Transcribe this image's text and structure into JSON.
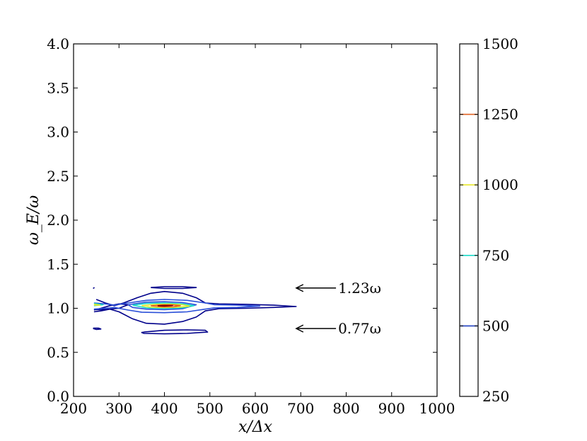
{
  "chart_data": {
    "type": "contour",
    "xlabel": "x/Δx",
    "ylabel": "ω_E/ω",
    "xlim": [
      200,
      1000
    ],
    "ylim": [
      0.0,
      4.0
    ],
    "xticks": [
      "200",
      "300",
      "400",
      "500",
      "600",
      "700",
      "800",
      "900",
      "1000"
    ],
    "yticks": [
      "0.0",
      "0.5",
      "1.0",
      "1.5",
      "2.0",
      "2.5",
      "3.0",
      "3.5",
      "4.0"
    ],
    "grid": false,
    "colorbar": {
      "range": [
        250,
        1500
      ],
      "ticks": [
        "250",
        "500",
        "750",
        "1000",
        "1250",
        "1500"
      ],
      "levels": [
        {
          "value": 500,
          "color": "#1f3fbf"
        },
        {
          "value": 750,
          "color": "#19d9c8"
        },
        {
          "value": 1000,
          "color": "#e8e82a"
        },
        {
          "value": 1250,
          "color": "#e06020"
        }
      ]
    },
    "contour_levels": [
      {
        "level": 250,
        "color": "#00008b",
        "paths": [
          [
            [
              250,
              1.1
            ],
            [
              270,
              1.06
            ],
            [
              290,
              1.03
            ],
            [
              310,
              1.06
            ],
            [
              340,
              1.12
            ],
            [
              370,
              1.17
            ],
            [
              400,
              1.19
            ],
            [
              440,
              1.17
            ],
            [
              470,
              1.12
            ],
            [
              490,
              1.06
            ],
            [
              520,
              1.05
            ],
            [
              580,
              1.045
            ],
            [
              640,
              1.035
            ],
            [
              690,
              1.02
            ],
            [
              640,
              1.01
            ],
            [
              580,
              1.0
            ],
            [
              520,
              0.995
            ],
            [
              490,
              0.97
            ],
            [
              470,
              0.9
            ],
            [
              440,
              0.85
            ],
            [
              400,
              0.82
            ],
            [
              360,
              0.83
            ],
            [
              330,
              0.88
            ],
            [
              300,
              0.96
            ],
            [
              280,
              0.99
            ],
            [
              260,
              0.97
            ],
            [
              245,
              0.96
            ]
          ],
          [
            [
              245,
              0.98
            ],
            [
              260,
              1.0
            ],
            [
              280,
              1.03
            ],
            [
              300,
              1.05
            ],
            [
              320,
              1.04
            ],
            [
              300,
              1.0
            ],
            [
              280,
              0.99
            ],
            [
              260,
              0.985
            ],
            [
              245,
              0.985
            ]
          ],
          [
            [
              355,
              0.73
            ],
            [
              400,
              0.75
            ],
            [
              450,
              0.755
            ],
            [
              490,
              0.75
            ],
            [
              495,
              0.73
            ],
            [
              450,
              0.715
            ],
            [
              400,
              0.71
            ],
            [
              355,
              0.715
            ],
            [
              350,
              0.725
            ],
            [
              355,
              0.73
            ]
          ],
          [
            [
              370,
              1.235
            ],
            [
              400,
              1.245
            ],
            [
              440,
              1.245
            ],
            [
              470,
              1.235
            ],
            [
              440,
              1.225
            ],
            [
              400,
              1.225
            ],
            [
              370,
              1.235
            ]
          ],
          [
            [
              243,
              0.775
            ],
            [
              255,
              0.775
            ],
            [
              260,
              0.765
            ],
            [
              250,
              0.76
            ],
            [
              243,
              0.77
            ]
          ],
          [
            [
              243,
              1.225
            ],
            [
              246,
              1.235
            ]
          ]
        ]
      },
      {
        "level": 500,
        "color": "#2a4fd8",
        "paths": [
          [
            [
              245,
              1.06
            ],
            [
              270,
              1.05
            ],
            [
              290,
              1.035
            ],
            [
              320,
              1.06
            ],
            [
              360,
              1.09
            ],
            [
              400,
              1.1
            ],
            [
              450,
              1.09
            ],
            [
              490,
              1.06
            ],
            [
              510,
              1.04
            ],
            [
              560,
              1.035
            ],
            [
              610,
              1.025
            ],
            [
              560,
              1.01
            ],
            [
              510,
              1.005
            ],
            [
              490,
              0.99
            ],
            [
              450,
              0.96
            ],
            [
              400,
              0.95
            ],
            [
              350,
              0.955
            ],
            [
              320,
              0.98
            ],
            [
              290,
              1.01
            ],
            [
              270,
              1.0
            ],
            [
              245,
              0.99
            ]
          ],
          [
            [
              320,
              1.04
            ],
            [
              360,
              1.07
            ],
            [
              400,
              1.075
            ],
            [
              440,
              1.065
            ],
            [
              470,
              1.04
            ],
            [
              440,
              0.995
            ],
            [
              400,
              0.985
            ],
            [
              360,
              0.99
            ],
            [
              330,
              1.01
            ],
            [
              320,
              1.04
            ]
          ]
        ]
      },
      {
        "level": 750,
        "color": "#19d9c8",
        "paths": [
          [
            [
              245,
              1.055
            ],
            [
              265,
              1.04
            ],
            [
              245,
              1.03
            ]
          ],
          [
            [
              330,
              1.035
            ],
            [
              360,
              1.055
            ],
            [
              400,
              1.06
            ],
            [
              440,
              1.05
            ],
            [
              465,
              1.03
            ],
            [
              440,
              1.005
            ],
            [
              400,
              0.998
            ],
            [
              360,
              1.005
            ],
            [
              330,
              1.035
            ]
          ]
        ]
      },
      {
        "level": 1000,
        "color": "#e8e82a",
        "paths": [
          [
            [
              245,
              1.045
            ],
            [
              258,
              1.037
            ],
            [
              245,
              1.035
            ]
          ],
          [
            [
              350,
              1.03
            ],
            [
              380,
              1.045
            ],
            [
              410,
              1.048
            ],
            [
              440,
              1.04
            ],
            [
              455,
              1.025
            ],
            [
              430,
              1.012
            ],
            [
              400,
              1.008
            ],
            [
              370,
              1.012
            ],
            [
              350,
              1.03
            ]
          ]
        ]
      },
      {
        "level": 1250,
        "color": "#e06020",
        "paths": [
          [
            [
              370,
              1.028
            ],
            [
              395,
              1.038
            ],
            [
              420,
              1.038
            ],
            [
              435,
              1.03
            ],
            [
              420,
              1.018
            ],
            [
              395,
              1.016
            ],
            [
              370,
              1.028
            ]
          ]
        ]
      },
      {
        "level": 1500,
        "color": "#8b0000",
        "paths": [
          [
            [
              385,
              1.03
            ],
            [
              400,
              1.034
            ],
            [
              418,
              1.032
            ],
            [
              400,
              1.024
            ],
            [
              385,
              1.03
            ]
          ]
        ]
      }
    ],
    "annotations": [
      {
        "text": "1.23ω",
        "arrow_tip": [
          690,
          1.23
        ],
        "text_at": [
          790,
          1.23
        ]
      },
      {
        "text": "0.77ω",
        "arrow_tip": [
          690,
          0.77
        ],
        "text_at": [
          790,
          0.77
        ]
      }
    ]
  }
}
